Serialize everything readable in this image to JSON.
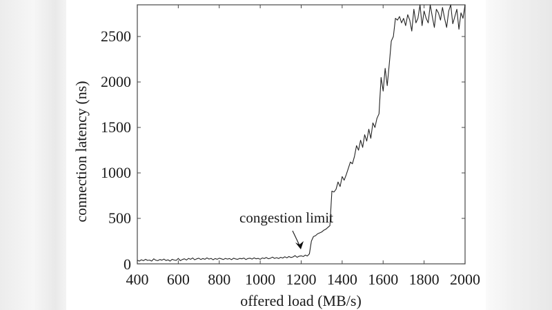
{
  "chart_data": {
    "type": "line",
    "title": "",
    "xlabel": "offered load (MB/s)",
    "ylabel": "connection latency (ns)",
    "xlim": [
      400,
      2000
    ],
    "ylim": [
      0,
      2850
    ],
    "xticks": [
      400,
      600,
      800,
      1000,
      1200,
      1400,
      1600,
      1800,
      2000
    ],
    "yticks": [
      0,
      500,
      1000,
      1500,
      2000,
      2500
    ],
    "grid": false,
    "legend": null,
    "annotations": [
      {
        "text": "congestion limit",
        "arrow_to": [
          1220,
          100
        ]
      }
    ],
    "series": [
      {
        "name": "connection latency",
        "x": [
          400,
          410,
          420,
          430,
          440,
          450,
          460,
          470,
          480,
          490,
          500,
          510,
          520,
          530,
          540,
          550,
          560,
          570,
          580,
          590,
          600,
          610,
          620,
          630,
          640,
          650,
          660,
          670,
          680,
          690,
          700,
          710,
          720,
          730,
          740,
          750,
          760,
          770,
          780,
          790,
          800,
          810,
          820,
          830,
          840,
          850,
          860,
          870,
          880,
          890,
          900,
          910,
          920,
          930,
          940,
          950,
          960,
          970,
          980,
          990,
          1000,
          1010,
          1020,
          1030,
          1040,
          1050,
          1060,
          1070,
          1080,
          1090,
          1100,
          1110,
          1120,
          1130,
          1140,
          1150,
          1160,
          1170,
          1180,
          1190,
          1200,
          1210,
          1220,
          1230,
          1240,
          1250,
          1260,
          1270,
          1280,
          1290,
          1300,
          1310,
          1320,
          1330,
          1340,
          1350,
          1360,
          1370,
          1380,
          1390,
          1400,
          1410,
          1420,
          1430,
          1440,
          1450,
          1460,
          1470,
          1480,
          1490,
          1500,
          1510,
          1520,
          1530,
          1540,
          1550,
          1560,
          1570,
          1580,
          1590,
          1600,
          1610,
          1620,
          1630,
          1640,
          1650,
          1660,
          1670,
          1680,
          1690,
          1700,
          1710,
          1720,
          1730,
          1740,
          1750,
          1760,
          1770,
          1780,
          1790,
          1800,
          1810,
          1820,
          1830,
          1840,
          1850,
          1860,
          1870,
          1880,
          1890,
          1900,
          1910,
          1920,
          1930,
          1940,
          1950,
          1960,
          1970,
          1980,
          1990,
          2000
        ],
        "y": [
          40,
          30,
          45,
          35,
          50,
          38,
          42,
          30,
          55,
          40,
          35,
          48,
          40,
          52,
          36,
          45,
          30,
          50,
          42,
          38,
          60,
          35,
          48,
          55,
          42,
          60,
          50,
          65,
          45,
          55,
          62,
          48,
          58,
          50,
          66,
          52,
          60,
          45,
          58,
          50,
          62,
          55,
          48,
          60,
          52,
          58,
          46,
          62,
          54,
          50,
          60,
          55,
          64,
          48,
          58,
          62,
          52,
          66,
          55,
          60,
          50,
          65,
          58,
          70,
          56,
          62,
          74,
          60,
          68,
          58,
          72,
          64,
          78,
          66,
          80,
          70,
          76,
          90,
          72,
          84,
          88,
          80,
          96,
          86,
          110,
          250,
          300,
          310,
          330,
          340,
          350,
          370,
          380,
          400,
          420,
          800,
          790,
          820,
          900,
          850,
          960,
          920,
          980,
          1050,
          1120,
          1100,
          1180,
          1300,
          1250,
          1360,
          1280,
          1420,
          1350,
          1480,
          1380,
          1550,
          1500,
          1600,
          1650,
          2050,
          1900,
          2150,
          1960,
          2200,
          2450,
          2500,
          2700,
          2680,
          2720,
          2650,
          2700,
          2620,
          2740,
          2680,
          2560,
          2800,
          2650,
          2700,
          2850,
          2620,
          2780,
          2700,
          2650,
          2850,
          2720,
          2600,
          2800,
          2760,
          2680,
          2820,
          2700,
          2600,
          2780,
          2850,
          2640,
          2720,
          2800,
          2580,
          2760,
          2700,
          2850
        ],
        "color": "#222222"
      }
    ]
  }
}
